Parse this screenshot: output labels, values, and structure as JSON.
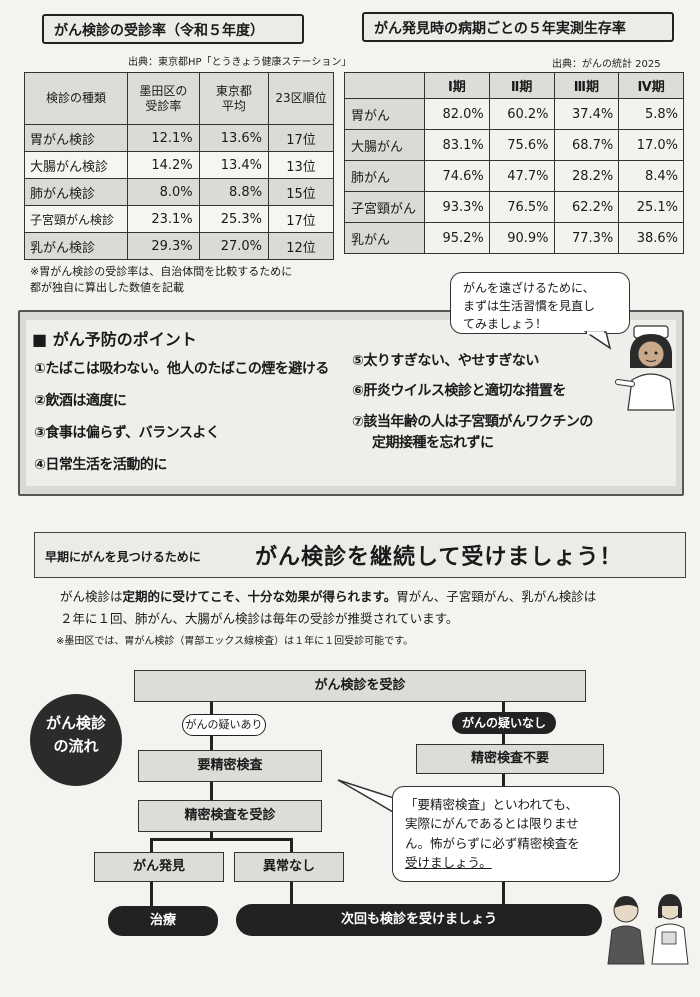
{
  "screening_rate": {
    "title": "がん検診の受診率（令和５年度）",
    "source": "出典：東京都HP「とうきょう健康ステーション」",
    "headers": [
      "検診の種類",
      "墨田区の受診率",
      "東京都平均",
      "23区順位"
    ],
    "header_lines": [
      [
        "検診の種類"
      ],
      [
        "墨田区の",
        "受診率"
      ],
      [
        "東京都",
        "平均"
      ],
      [
        "23区順位"
      ]
    ],
    "rows": [
      {
        "type": "胃がん検診",
        "sumida": "12.1%",
        "tokyo": "13.6%",
        "rank": "17位"
      },
      {
        "type": "大腸がん検診",
        "sumida": "14.2%",
        "tokyo": "13.4%",
        "rank": "13位"
      },
      {
        "type": "肺がん検診",
        "sumida": "8.0%",
        "tokyo": "8.8%",
        "rank": "15位"
      },
      {
        "type": "子宮頸がん検診",
        "sumida": "23.1%",
        "tokyo": "25.3%",
        "rank": "17位"
      },
      {
        "type": "乳がん検診",
        "sumida": "29.3%",
        "tokyo": "27.0%",
        "rank": "12位"
      }
    ],
    "note_lines": [
      "※胃がん検診の受診率は、自治体間を比較するために",
      "都が独自に算出した数値を記載"
    ]
  },
  "survival": {
    "title": "がん発見時の病期ごとの５年実測生存率",
    "source": "出典：がんの統計 2025",
    "stages": [
      "Ⅰ期",
      "Ⅱ期",
      "Ⅲ期",
      "Ⅳ期"
    ],
    "rows": [
      {
        "name": "胃がん",
        "values": [
          "82.0%",
          "60.2%",
          "37.4%",
          "5.8%"
        ]
      },
      {
        "name": "大腸がん",
        "values": [
          "83.1%",
          "75.6%",
          "68.7%",
          "17.0%"
        ]
      },
      {
        "name": "肺がん",
        "values": [
          "74.6%",
          "47.7%",
          "28.2%",
          "8.4%"
        ]
      },
      {
        "name": "子宮頸がん",
        "values": [
          "93.3%",
          "76.5%",
          "62.2%",
          "25.1%"
        ]
      },
      {
        "name": "乳がん",
        "values": [
          "95.2%",
          "90.9%",
          "77.3%",
          "38.6%"
        ]
      }
    ]
  },
  "nurse_bubble": [
    "がんを遠ざけるために、",
    "まずは生活習慣を見直し",
    "てみましょう！"
  ],
  "prevention": {
    "title": "■ がん予防のポイント",
    "left_items": [
      "①たばこは吸わない。他人のたばこの煙を避ける",
      "②飲酒は適度に",
      "③食事は偏らず、バランスよく",
      "④日常生活を活動的に"
    ],
    "right_items": [
      "⑤太りすぎない、やせすぎない",
      "⑥肝炎ウイルス検診と適切な措置を"
    ],
    "item7_lines": [
      "⑦該当年齢の人は子宮頸がんワクチンの",
      "定期接種を忘れずに"
    ]
  },
  "banner": {
    "lead": "早期にがんを見つけるために",
    "headline": "がん検診を継続して受けましょう！"
  },
  "intro": {
    "line1_normal": "がん検診は",
    "line1_bold": "定期的に受けてこそ、十分な効果が得られます。",
    "line1_rest": "胃がん、子宮頸がん、乳がん検診は",
    "line2": "２年に１回、肺がん、大腸がん検診は毎年の受診が推奨されています。",
    "note": "※墨田区では、胃がん検診（胃部エックス線検査）は１年に１回受診可能です。"
  },
  "flow": {
    "badge": [
      "がん検診",
      "の流れ"
    ],
    "start": "がん検診を受診",
    "suspect_yes": "がんの疑いあり",
    "suspect_no": "がんの疑いなし",
    "detail_needed": "要精密検査",
    "detail_not_needed": "精密検査不要",
    "detail_exam": "精密検査を受診",
    "found": "がん発見",
    "no_issue": "異常なし",
    "treatment": "治療",
    "next_time": "次回も検診を受けましょう",
    "bubble_lines": [
      "「要精密検査」といわれても、",
      "実際にがんであるとは限りませ",
      "ん。怖がらずに必ず精密検査を",
      "受けましょう。"
    ]
  },
  "colors": {
    "background": "#f4f3ef",
    "box_gray": "#dcdcd8",
    "dark": "#222222"
  }
}
